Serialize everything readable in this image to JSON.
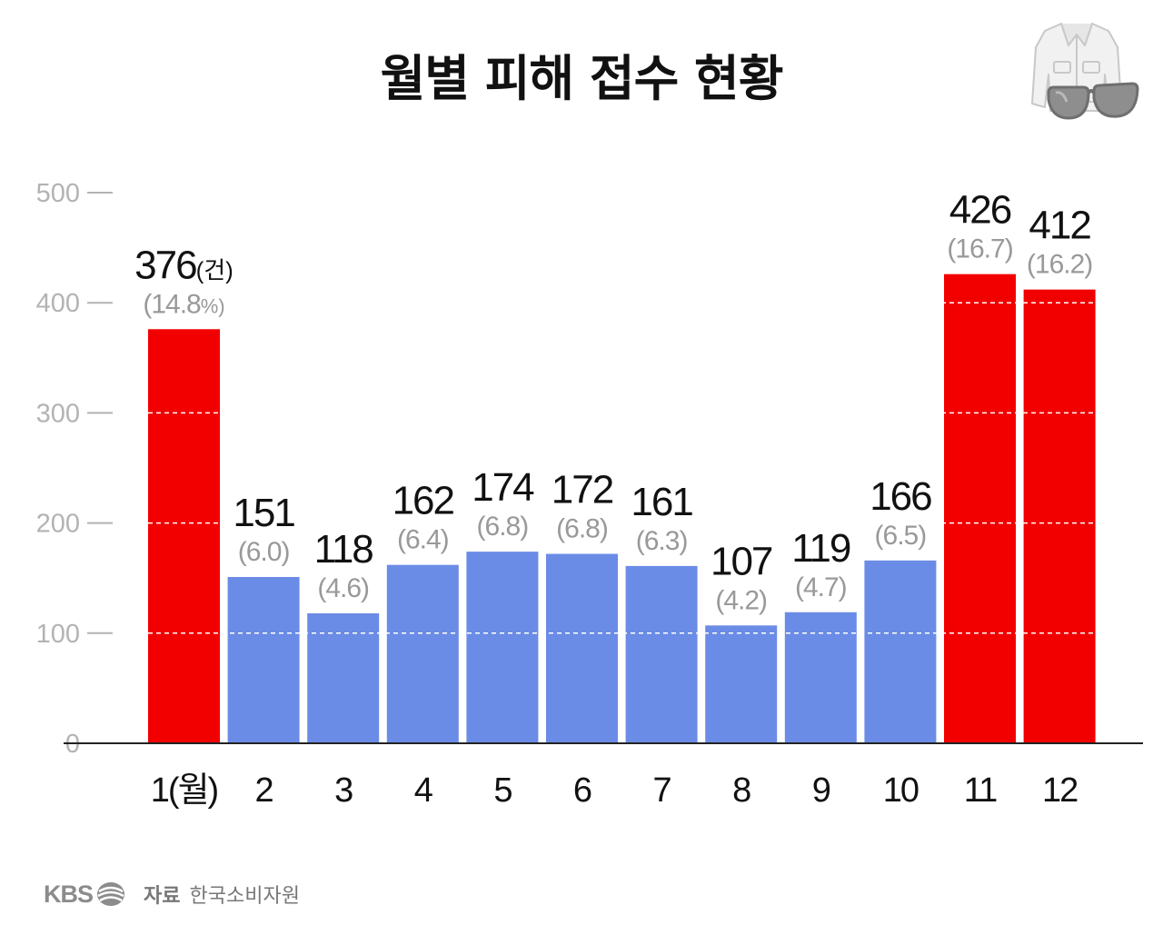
{
  "title": "월별 피해 접수 현황",
  "chart_data": {
    "type": "bar",
    "title": "월별 피해 접수 현황",
    "categories": [
      "1(월)",
      "2",
      "3",
      "4",
      "5",
      "6",
      "7",
      "8",
      "9",
      "10",
      "11",
      "12"
    ],
    "values": [
      376,
      151,
      118,
      162,
      174,
      172,
      161,
      107,
      119,
      166,
      426,
      412
    ],
    "value_labels": [
      "376",
      "151",
      "118",
      "162",
      "174",
      "172",
      "161",
      "107",
      "119",
      "166",
      "426",
      "412"
    ],
    "value_unit": "(건)",
    "percent_labels": [
      "(14.8",
      "(6.0)",
      "(4.6)",
      "(6.4)",
      "(6.8)",
      "(6.8)",
      "(6.3)",
      "(4.2)",
      "(4.7)",
      "(6.5)",
      "(16.7)",
      "(16.2)"
    ],
    "percent_unit": "%)",
    "highlight": [
      true,
      false,
      false,
      false,
      false,
      false,
      false,
      false,
      false,
      false,
      true,
      true
    ],
    "yticks": [
      0,
      100,
      200,
      300,
      400,
      500
    ],
    "ylim": [
      0,
      500
    ],
    "grid": true,
    "colors": {
      "highlight": "#f20000",
      "normal": "#6a8ce6",
      "value_text": "#111111",
      "percent_text": "#999999",
      "tick_text": "#b3b3b3",
      "axis": "#222222",
      "grid": "#ffffff"
    }
  },
  "footer": {
    "logo": "KBS",
    "emblem_icon": "kbs-emblem-icon",
    "source_label": "자료",
    "source_name": "한국소비자원"
  },
  "illustration": {
    "icon": "jacket-sunglasses-icon"
  }
}
